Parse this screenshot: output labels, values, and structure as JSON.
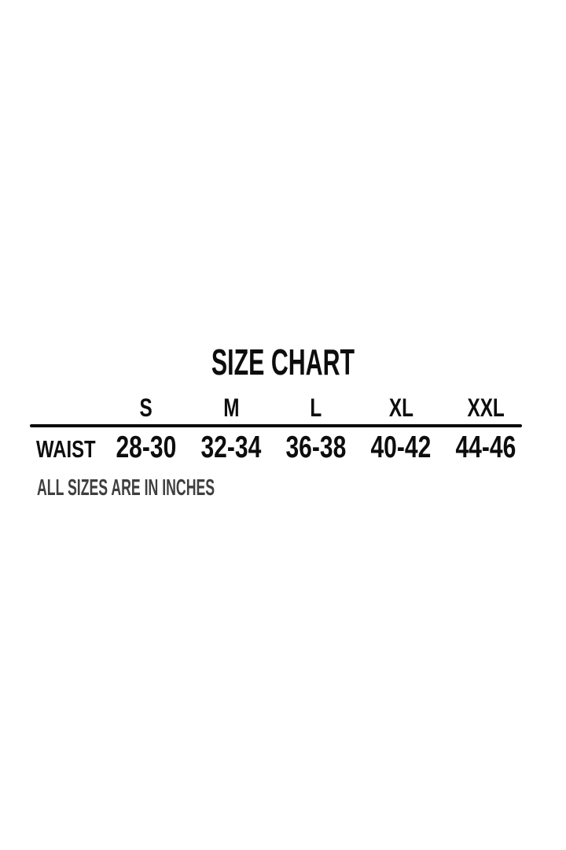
{
  "title": "SIZE CHART",
  "table": {
    "row_header": "WAIST",
    "columns": [
      "S",
      "M",
      "L",
      "XL",
      "XXL"
    ],
    "values": [
      "28-30",
      "32-34",
      "36-38",
      "40-42",
      "44-46"
    ]
  },
  "footnote": "ALL SIZES ARE IN INCHES",
  "colors": {
    "background": "#ffffff",
    "text": "#0d0d0d",
    "rule": "#0a0a0a",
    "footnote_text": "#3f3f3f"
  },
  "chart_data": {
    "type": "table",
    "title": "SIZE CHART",
    "columns": [
      "S",
      "M",
      "L",
      "XL",
      "XXL"
    ],
    "rows": [
      {
        "label": "WAIST",
        "values": [
          "28-30",
          "32-34",
          "36-38",
          "40-42",
          "44-46"
        ]
      }
    ],
    "units_note": "ALL SIZES ARE IN INCHES",
    "layout": {
      "header_divider": true,
      "gridlines": false,
      "title_position": "top-center"
    }
  }
}
